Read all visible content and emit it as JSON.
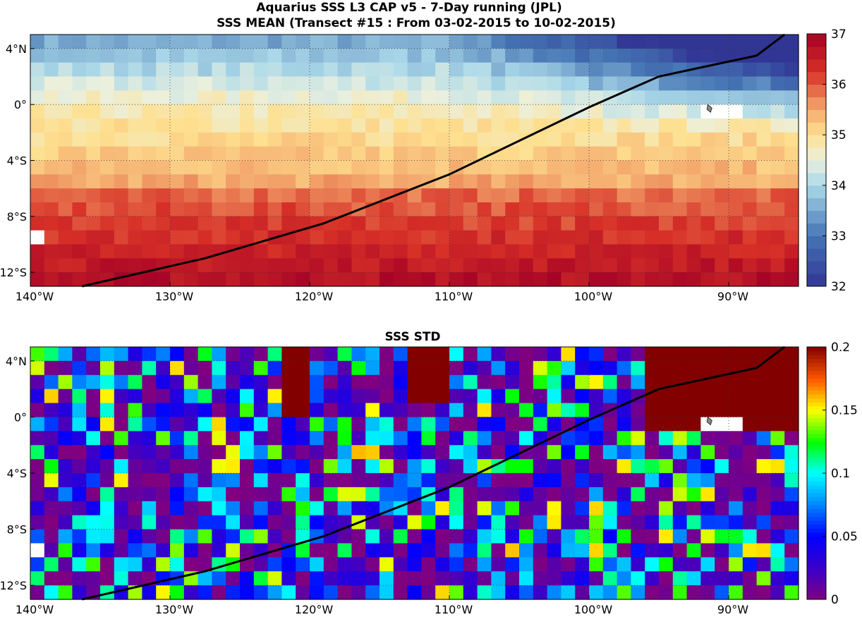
{
  "chart_data": [
    {
      "type": "heatmap",
      "title": [
        "Aquarius SSS L3 CAP v5 - 7-Day running (JPL)",
        "SSS MEAN (Transect #15 : From 03-02-2015 to 10-02-2015)"
      ],
      "xlim": [
        -140,
        -85
      ],
      "ylim": [
        -13,
        5
      ],
      "x_ticks": [
        -140,
        -130,
        -120,
        -110,
        -100,
        -90
      ],
      "x_tick_labels": [
        "140°W",
        "130°W",
        "120°W",
        "110°W",
        "100°W",
        "90°W"
      ],
      "y_ticks": [
        4,
        0,
        -4,
        -8,
        -12
      ],
      "y_tick_labels": [
        "4°N",
        "0°",
        "4°S",
        "8°S",
        "12°S"
      ],
      "grid": true,
      "colorbar": {
        "range": [
          32,
          37
        ],
        "ticks": [
          32,
          33,
          34,
          35,
          36,
          37
        ],
        "tick_labels": [
          "32",
          "33",
          "34",
          "35",
          "36",
          "37"
        ],
        "colormap": "blue-white-red (32 blue to 37 dark red)"
      },
      "transect": {
        "x": [
          -136.3,
          -127.5,
          -119,
          -110,
          -100,
          -95,
          -88,
          -86
        ],
        "y": [
          -13,
          -11,
          -8.5,
          -5,
          -0.2,
          2,
          3.5,
          5
        ]
      },
      "description_pattern": "salinity ~33 at 4N 95-88W rising to ~36.3 at 12S 140W; fresh pool <34 near 0-4N east of 110W, saltier >36 south-west"
    },
    {
      "type": "heatmap",
      "title": "SSS STD",
      "xlim": [
        -140,
        -85
      ],
      "ylim": [
        -13,
        5
      ],
      "x_ticks": [
        -140,
        -130,
        -120,
        -110,
        -100,
        -90
      ],
      "x_tick_labels": [
        "140°W",
        "130°W",
        "120°W",
        "110°W",
        "100°W",
        "90°W"
      ],
      "y_ticks": [
        4,
        0,
        -4,
        -8,
        -12
      ],
      "y_tick_labels": [
        "4°N",
        "0°",
        "4°S",
        "8°S",
        "12°S"
      ],
      "grid": true,
      "colorbar": {
        "range": [
          0,
          0.2
        ],
        "ticks": [
          0,
          0.05,
          0.1,
          0.15,
          0.2
        ],
        "tick_labels": [
          "0",
          "0.05",
          "0.1",
          "0.15",
          "0.2"
        ],
        "colormap": "jet"
      },
      "transect": {
        "x": [
          -136.3,
          -127.5,
          -119,
          -110,
          -100,
          -95,
          -88,
          -86
        ],
        "y": [
          -13,
          -11,
          -8.5,
          -5,
          -0.2,
          2,
          3.5,
          5
        ]
      },
      "description_pattern": "mostly 0-0.05 purple/blue noise; saturated >0.2 patch 0-5N east of 96W"
    }
  ]
}
